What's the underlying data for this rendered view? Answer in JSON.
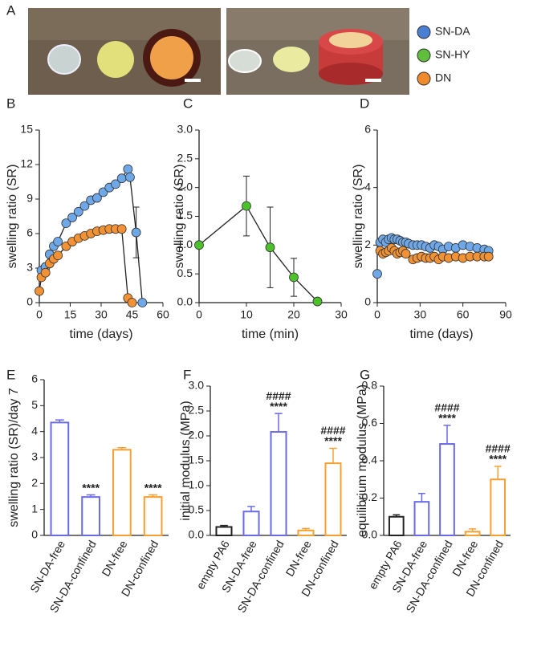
{
  "photo_panel": {
    "label": "A",
    "legend": [
      {
        "name": "SN-DA",
        "color": "#4a7fd4"
      },
      {
        "name": "SN-HY",
        "color": "#5fbf3b"
      },
      {
        "name": "DN",
        "color": "#f08a2c"
      }
    ]
  },
  "chart_data": [
    {
      "type": "line",
      "label": "B",
      "x_label": "time (days)",
      "y_label": "swelling ratio (SR)",
      "xlim": [
        0,
        60
      ],
      "xticks": [
        0,
        15,
        30,
        45,
        60
      ],
      "ylim": [
        0,
        15
      ],
      "yticks": [
        0,
        3,
        6,
        9,
        12,
        15
      ],
      "series": [
        {
          "name": "SN-DA",
          "color": "#6fa8e8",
          "x": [
            1,
            3,
            5,
            7,
            9,
            13,
            16,
            19,
            22,
            25,
            28,
            31,
            34,
            37,
            40,
            43,
            44,
            47,
            50
          ],
          "values": [
            2.8,
            3.1,
            4.2,
            4.9,
            5.3,
            6.9,
            7.4,
            7.9,
            8.4,
            8.9,
            9.1,
            9.6,
            10.0,
            10.3,
            10.8,
            11.6,
            10.9,
            6.1,
            0.0
          ],
          "errors": [
            null,
            null,
            null,
            null,
            null,
            null,
            null,
            null,
            null,
            null,
            null,
            null,
            null,
            null,
            null,
            null,
            null,
            2.2,
            null
          ]
        },
        {
          "name": "DN",
          "color": "#f39234",
          "x": [
            0,
            1,
            3,
            5,
            7,
            9,
            13,
            16,
            19,
            22,
            25,
            28,
            31,
            34,
            37,
            40,
            43,
            45
          ],
          "values": [
            1.0,
            2.2,
            2.6,
            3.4,
            3.8,
            4.1,
            4.9,
            5.3,
            5.6,
            5.8,
            6.0,
            6.2,
            6.3,
            6.4,
            6.4,
            6.4,
            0.4,
            0.0
          ]
        }
      ]
    },
    {
      "type": "line",
      "label": "C",
      "x_label": "time (min)",
      "y_label": "swelling ratio (SR)",
      "xlim": [
        0,
        30
      ],
      "xticks": [
        0,
        10,
        20,
        30
      ],
      "ylim": [
        0,
        3
      ],
      "yticks": [
        {
          "value": 0,
          "label": "0.0"
        },
        0.5,
        {
          "value": 1,
          "label": "1.0"
        },
        1.5,
        {
          "value": 2,
          "label": "2.0"
        },
        2.5,
        {
          "value": 3,
          "label": "3.0"
        }
      ],
      "series": [
        {
          "name": "SN-HY",
          "color": "#4cc22a",
          "x": [
            0,
            10,
            15,
            20,
            25
          ],
          "values": [
            1.0,
            1.68,
            0.96,
            0.44,
            0.02
          ],
          "errors": [
            null,
            0.52,
            0.7,
            0.33,
            null
          ]
        }
      ]
    },
    {
      "type": "scatter",
      "label": "D",
      "x_label": "time (days)",
      "y_label": "swelling ratio (SR)",
      "xlim": [
        0,
        90
      ],
      "xticks": [
        0,
        30,
        60,
        90
      ],
      "ylim": [
        0,
        6
      ],
      "yticks": [
        0,
        2,
        4,
        6
      ],
      "series": [
        {
          "name": "SN-DA",
          "color": "#6fa8e8",
          "x": [
            0,
            2,
            4,
            6,
            8,
            10,
            12,
            14,
            16,
            18,
            20,
            22,
            25,
            28,
            31,
            34,
            37,
            40,
            43,
            46,
            50,
            55,
            60,
            65,
            70,
            75,
            78
          ],
          "values": [
            1.0,
            2.1,
            2.2,
            2.1,
            2.2,
            2.25,
            2.2,
            2.2,
            2.15,
            2.1,
            2.1,
            2.05,
            2.0,
            2.0,
            2.0,
            1.95,
            1.9,
            2.0,
            1.95,
            1.85,
            1.95,
            1.9,
            2.0,
            1.95,
            1.9,
            1.85,
            1.8
          ]
        },
        {
          "name": "DN",
          "color": "#f39234",
          "x": [
            2,
            4,
            6,
            8,
            10,
            12,
            14,
            16,
            18,
            20,
            25,
            28,
            31,
            34,
            37,
            40,
            43,
            46,
            50,
            55,
            60,
            65,
            70,
            75,
            78
          ],
          "values": [
            1.8,
            1.7,
            1.75,
            1.8,
            1.9,
            1.8,
            1.7,
            1.75,
            1.8,
            1.7,
            1.5,
            1.55,
            1.6,
            1.55,
            1.55,
            1.6,
            1.5,
            1.6,
            1.55,
            1.6,
            1.55,
            1.6,
            1.6,
            1.6,
            1.6
          ]
        }
      ]
    },
    {
      "type": "bar",
      "label": "E",
      "y_label": "swelling ratio (SR)/day 7",
      "categories": [
        "SN-DA-free",
        "SN-DA-confined",
        "DN-free",
        "DN-confined"
      ],
      "values": [
        4.35,
        1.48,
        3.3,
        1.48
      ],
      "errors": [
        0.1,
        0.08,
        0.08,
        0.08
      ],
      "colors": [
        "#6a6ae8",
        "#6a6ae8",
        "#f7a030",
        "#f7a030"
      ],
      "stars": [
        null,
        "****",
        null,
        "****"
      ],
      "ylim": [
        0,
        6
      ],
      "yticks": [
        0,
        1,
        2,
        3,
        4,
        5,
        6
      ]
    },
    {
      "type": "bar",
      "label": "F",
      "y_label": "initial modulus (MPa)",
      "categories": [
        "empty PA6",
        "SN-DA-free",
        "SN-DA-confined",
        "DN-free",
        "DN-confined"
      ],
      "values": [
        0.17,
        0.48,
        2.08,
        0.1,
        1.45
      ],
      "errors": [
        0.03,
        0.1,
        0.37,
        0.04,
        0.3
      ],
      "colors": [
        "#222222",
        "#6a6ae8",
        "#6a6ae8",
        "#f7a030",
        "#f7a030"
      ],
      "stars": [
        null,
        null,
        "****",
        null,
        "****"
      ],
      "hashes": [
        null,
        null,
        "####",
        null,
        "####"
      ],
      "ylim": [
        0,
        3
      ],
      "yticks": [
        {
          "value": 0,
          "label": "0.0"
        },
        0.5,
        {
          "value": 1,
          "label": "1.0"
        },
        1.5,
        {
          "value": 2,
          "label": "2.0"
        },
        2.5,
        {
          "value": 3,
          "label": "3.0"
        }
      ]
    },
    {
      "type": "bar",
      "label": "G",
      "y_label": "equilibrium modulus (MPa)",
      "categories": [
        "empty PA6",
        "SN-DA-free",
        "SN-DA-confined",
        "DN-free",
        "DN-confined"
      ],
      "values": [
        0.1,
        0.18,
        0.49,
        0.02,
        0.3
      ],
      "errors": [
        0.01,
        0.045,
        0.1,
        0.015,
        0.07
      ],
      "colors": [
        "#222222",
        "#6a6ae8",
        "#6a6ae8",
        "#f7a030",
        "#f7a030"
      ],
      "stars": [
        null,
        null,
        "****",
        null,
        "****"
      ],
      "hashes": [
        null,
        null,
        "####",
        null,
        "####"
      ],
      "ylim": [
        0,
        0.8
      ],
      "yticks": [
        {
          "value": 0,
          "label": "0.0"
        },
        0.2,
        0.4,
        0.6,
        0.8
      ]
    }
  ]
}
